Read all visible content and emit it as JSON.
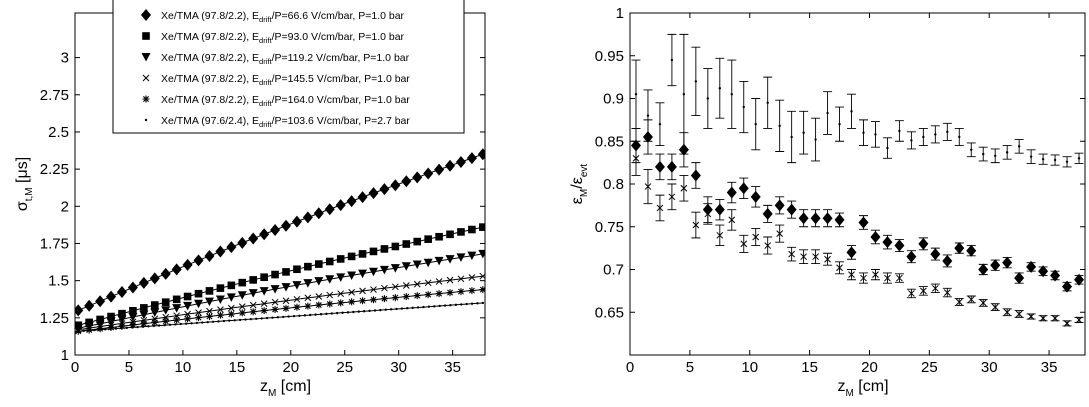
{
  "chart_data": [
    {
      "type": "scatter",
      "title": "",
      "xlabel": {
        "base": "z",
        "sub": "M",
        "rest": " [cm]"
      },
      "ylabel": {
        "base": "σ",
        "sub": "t,M",
        "rest": " [μs]"
      },
      "xlim": [
        0,
        38
      ],
      "ylim": [
        1,
        3.3
      ],
      "xticks": [
        0,
        5,
        10,
        15,
        20,
        25,
        30,
        35
      ],
      "yticks": [
        1,
        1.25,
        1.5,
        1.75,
        2,
        2.25,
        2.5,
        2.75,
        3
      ],
      "grid": false,
      "legend_position": "top-center",
      "series": [
        {
          "marker": "diamond",
          "legend_pre": "Xe/TMA (97.8/2.2), E",
          "legend_sub": "drift",
          "legend_post": "/P=66.6 V/cm/bar,   P=1.0 bar",
          "x": [
            0.3,
            37.8
          ],
          "y": [
            1.3,
            2.35
          ],
          "curve": 0.03
        },
        {
          "marker": "square",
          "legend_pre": "Xe/TMA (97.8/2.2), E",
          "legend_sub": "drift",
          "legend_post": "/P=93.0 V/cm/bar,   P=1.0 bar",
          "x": [
            0.3,
            37.8
          ],
          "y": [
            1.2,
            1.86
          ],
          "curve": 0.02
        },
        {
          "marker": "triangle-down",
          "legend_pre": "Xe/TMA (97.8/2.2), E",
          "legend_sub": "drift",
          "legend_post": "/P=119.2 V/cm/bar, P=1.0 bar",
          "x": [
            0.3,
            37.8
          ],
          "y": [
            1.18,
            1.68
          ],
          "curve": 0.02
        },
        {
          "marker": "x",
          "legend_pre": "Xe/TMA (97.8/2.2), E",
          "legend_sub": "drift",
          "legend_post": "/P=145.5 V/cm/bar, P=1.0 bar",
          "x": [
            0.3,
            37.8
          ],
          "y": [
            1.17,
            1.53
          ],
          "curve": 0.01
        },
        {
          "marker": "star",
          "legend_pre": "Xe/TMA (97.8/2.2), E",
          "legend_sub": "drift",
          "legend_post": "/P=164.0 V/cm/bar, P=1.0 bar",
          "x": [
            0.3,
            37.8
          ],
          "y": [
            1.16,
            1.44
          ],
          "curve": 0.01
        },
        {
          "marker": "dot",
          "legend_pre": "Xe/TMA (97.6/2.4), E",
          "legend_sub": "drift",
          "legend_post": "/P=103.6 V/cm/bar, P=2.7 bar",
          "x": [
            0.3,
            37.8
          ],
          "y": [
            1.16,
            1.35
          ],
          "curve": 0.0
        }
      ]
    },
    {
      "type": "scatter",
      "title": "",
      "xlabel": {
        "base": "z",
        "sub": "M",
        "rest": " [cm]"
      },
      "ylabel": {
        "base": "ε",
        "sub": "M",
        "mid": "/ε",
        "sub2": "evt"
      },
      "xlim": [
        0,
        38
      ],
      "ylim": [
        0.6,
        1.0
      ],
      "xticks": [
        0,
        5,
        10,
        15,
        20,
        25,
        30,
        35
      ],
      "yticks": [
        0.65,
        0.7,
        0.75,
        0.8,
        0.85,
        0.9,
        0.95,
        1
      ],
      "grid": false,
      "series": [
        {
          "marker": "dot",
          "errorbars": true,
          "x": [
            0.5,
            1.5,
            2.5,
            3.5,
            4.5,
            5.5,
            6.5,
            7.5,
            8.5,
            9.5,
            10.5,
            11.5,
            12.5,
            13.5,
            14.5,
            15.5,
            16.5,
            17.5,
            18.5,
            19.5,
            20.5,
            21.5,
            22.5,
            23.5,
            24.5,
            25.5,
            26.5,
            27.5,
            28.5,
            29.5,
            30.5,
            31.5,
            32.5,
            33.5,
            34.5,
            35.5,
            36.5,
            37.5
          ],
          "y": [
            0.905,
            0.88,
            0.87,
            0.945,
            0.905,
            0.92,
            0.9,
            0.912,
            0.905,
            0.89,
            0.87,
            0.895,
            0.868,
            0.855,
            0.86,
            0.852,
            0.883,
            0.87,
            0.885,
            0.86,
            0.858,
            0.842,
            0.862,
            0.851,
            0.855,
            0.858,
            0.861,
            0.855,
            0.84,
            0.835,
            0.833,
            0.837,
            0.844,
            0.832,
            0.829,
            0.828,
            0.826,
            0.83
          ],
          "err": [
            0.04,
            0.03,
            0.025,
            0.03,
            0.07,
            0.04,
            0.035,
            0.035,
            0.04,
            0.03,
            0.03,
            0.03,
            0.03,
            0.03,
            0.025,
            0.025,
            0.025,
            0.02,
            0.02,
            0.015,
            0.015,
            0.012,
            0.012,
            0.01,
            0.01,
            0.01,
            0.01,
            0.01,
            0.008,
            0.008,
            0.008,
            0.008,
            0.008,
            0.008,
            0.006,
            0.006,
            0.006,
            0.006
          ]
        },
        {
          "marker": "diamond",
          "errorbars": true,
          "x": [
            0.5,
            1.5,
            2.5,
            3.5,
            4.5,
            5.5,
            6.5,
            7.5,
            8.5,
            9.5,
            10.5,
            11.5,
            12.5,
            13.5,
            14.5,
            15.5,
            16.5,
            17.5,
            18.5,
            19.5,
            20.5,
            21.5,
            22.5,
            23.5,
            24.5,
            25.5,
            26.5,
            27.5,
            28.5,
            29.5,
            30.5,
            31.5,
            32.5,
            33.5,
            34.5,
            35.5,
            36.5,
            37.5
          ],
          "y": [
            0.845,
            0.855,
            0.82,
            0.82,
            0.84,
            0.81,
            0.77,
            0.77,
            0.79,
            0.795,
            0.785,
            0.765,
            0.775,
            0.77,
            0.76,
            0.76,
            0.76,
            0.758,
            0.72,
            0.755,
            0.738,
            0.732,
            0.728,
            0.715,
            0.73,
            0.718,
            0.71,
            0.725,
            0.722,
            0.7,
            0.705,
            0.708,
            0.69,
            0.703,
            0.698,
            0.693,
            0.68,
            0.688
          ],
          "err": [
            0.02,
            0.02,
            0.015,
            0.015,
            0.02,
            0.015,
            0.015,
            0.012,
            0.012,
            0.012,
            0.012,
            0.01,
            0.01,
            0.01,
            0.01,
            0.01,
            0.01,
            0.008,
            0.008,
            0.008,
            0.008,
            0.008,
            0.007,
            0.007,
            0.007,
            0.007,
            0.007,
            0.006,
            0.006,
            0.006,
            0.006,
            0.006,
            0.006,
            0.005,
            0.005,
            0.005,
            0.005,
            0.005
          ]
        },
        {
          "marker": "x",
          "errorbars": true,
          "x": [
            0.5,
            1.5,
            2.5,
            3.5,
            4.5,
            5.5,
            6.5,
            7.5,
            8.5,
            9.5,
            10.5,
            11.5,
            12.5,
            13.5,
            14.5,
            15.5,
            16.5,
            17.5,
            18.5,
            19.5,
            20.5,
            21.5,
            22.5,
            23.5,
            24.5,
            25.5,
            26.5,
            27.5,
            28.5,
            29.5,
            30.5,
            31.5,
            32.5,
            33.5,
            34.5,
            35.5,
            36.5,
            37.5
          ],
          "y": [
            0.83,
            0.797,
            0.772,
            0.785,
            0.795,
            0.752,
            0.765,
            0.74,
            0.758,
            0.73,
            0.738,
            0.728,
            0.742,
            0.718,
            0.715,
            0.715,
            0.712,
            0.702,
            0.694,
            0.69,
            0.694,
            0.69,
            0.69,
            0.672,
            0.675,
            0.678,
            0.673,
            0.662,
            0.665,
            0.661,
            0.656,
            0.65,
            0.648,
            0.645,
            0.643,
            0.643,
            0.637,
            0.641
          ],
          "err": [
            0.02,
            0.02,
            0.015,
            0.015,
            0.015,
            0.015,
            0.012,
            0.012,
            0.012,
            0.01,
            0.01,
            0.01,
            0.01,
            0.008,
            0.008,
            0.008,
            0.007,
            0.007,
            0.006,
            0.006,
            0.006,
            0.006,
            0.005,
            0.005,
            0.005,
            0.005,
            0.005,
            0.004,
            0.004,
            0.004,
            0.004,
            0.004,
            0.004,
            0.003,
            0.003,
            0.003,
            0.003,
            0.003
          ]
        }
      ]
    }
  ]
}
